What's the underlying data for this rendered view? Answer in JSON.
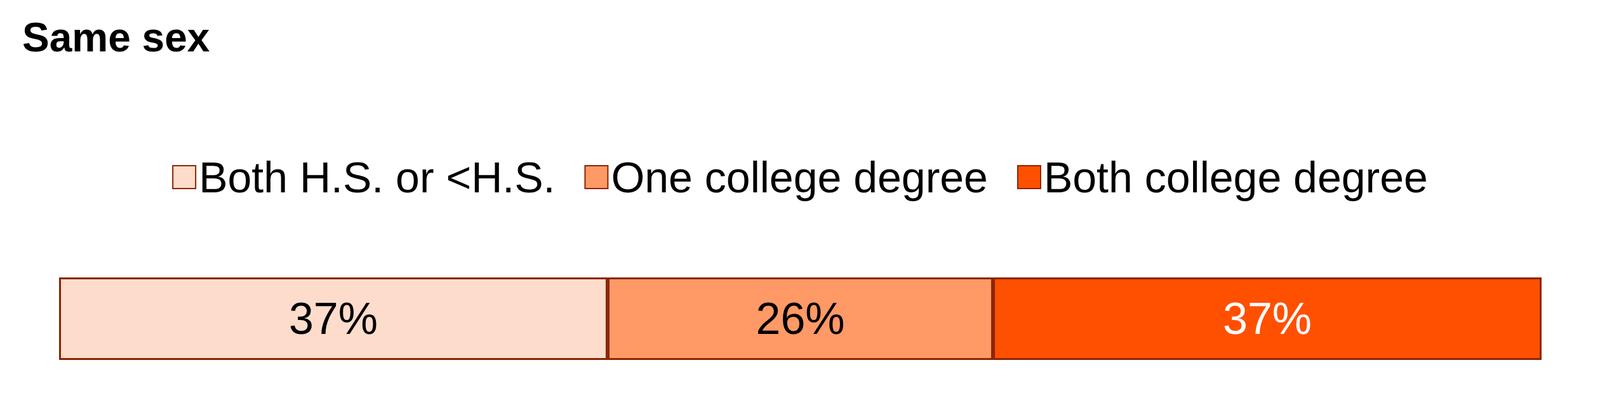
{
  "chart_data": {
    "type": "bar",
    "title": "Same sex",
    "orientation": "horizontal",
    "stacked": true,
    "data_labels": true,
    "tick_labels": false,
    "legend": "top",
    "categories": [
      null
    ],
    "xlim": [
      0,
      100
    ],
    "series": [
      {
        "name": "Both H.S. or <H.S.",
        "color": "#FDDCCB",
        "values": [
          37
        ],
        "value_labels": [
          "37%"
        ]
      },
      {
        "name": "One college degree",
        "color": "#FF9966",
        "values": [
          26
        ],
        "value_labels": [
          "26%"
        ]
      },
      {
        "name": "Both college degree",
        "color": "#FF5000",
        "values": [
          37
        ],
        "value_labels": [
          "37%"
        ]
      }
    ]
  }
}
